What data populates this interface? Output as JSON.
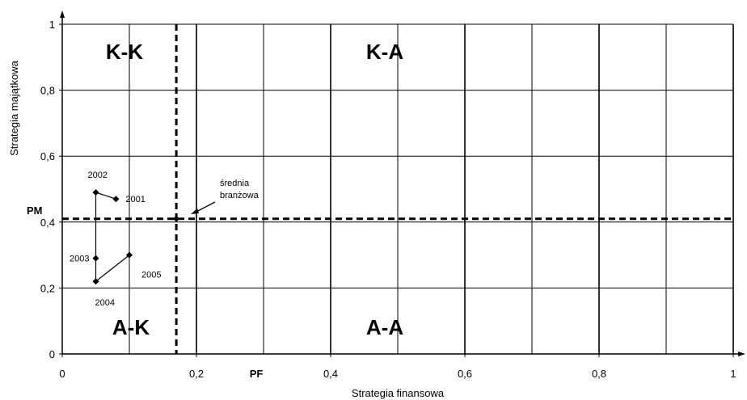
{
  "chart_data": {
    "type": "scatter",
    "title": "",
    "xlabel": "Strategia finansowa",
    "ylabel": "Strategia majątkowa",
    "xlim": [
      0,
      1
    ],
    "ylim": [
      0,
      1
    ],
    "xticks": [
      "0",
      "0,2",
      "0,4",
      "0,6",
      "0,8",
      "1"
    ],
    "yticks": [
      "0",
      "0,2",
      "0,4",
      "0,6",
      "0,8",
      "1"
    ],
    "grid": true,
    "series": [
      {
        "points": [
          {
            "label": "2001",
            "x": 0.08,
            "y": 0.47
          },
          {
            "label": "2002",
            "x": 0.05,
            "y": 0.49
          },
          {
            "label": "2003",
            "x": 0.05,
            "y": 0.29
          },
          {
            "label": "2004",
            "x": 0.05,
            "y": 0.22
          },
          {
            "label": "2005",
            "x": 0.1,
            "y": 0.3
          }
        ]
      }
    ],
    "reference_lines": {
      "vertical": {
        "x": 0.17,
        "label": "PF"
      },
      "horizontal": {
        "y": 0.41,
        "label": "PM"
      }
    },
    "annotation": {
      "lines": [
        "średnia",
        "branżowa"
      ],
      "x": 0.17,
      "y": 0.41
    },
    "quadrants": [
      {
        "label": "K-K",
        "position": "top-left"
      },
      {
        "label": "K-A",
        "position": "top-right"
      },
      {
        "label": "A-K",
        "position": "bottom-left"
      },
      {
        "label": "A-A",
        "position": "bottom-right"
      }
    ]
  }
}
